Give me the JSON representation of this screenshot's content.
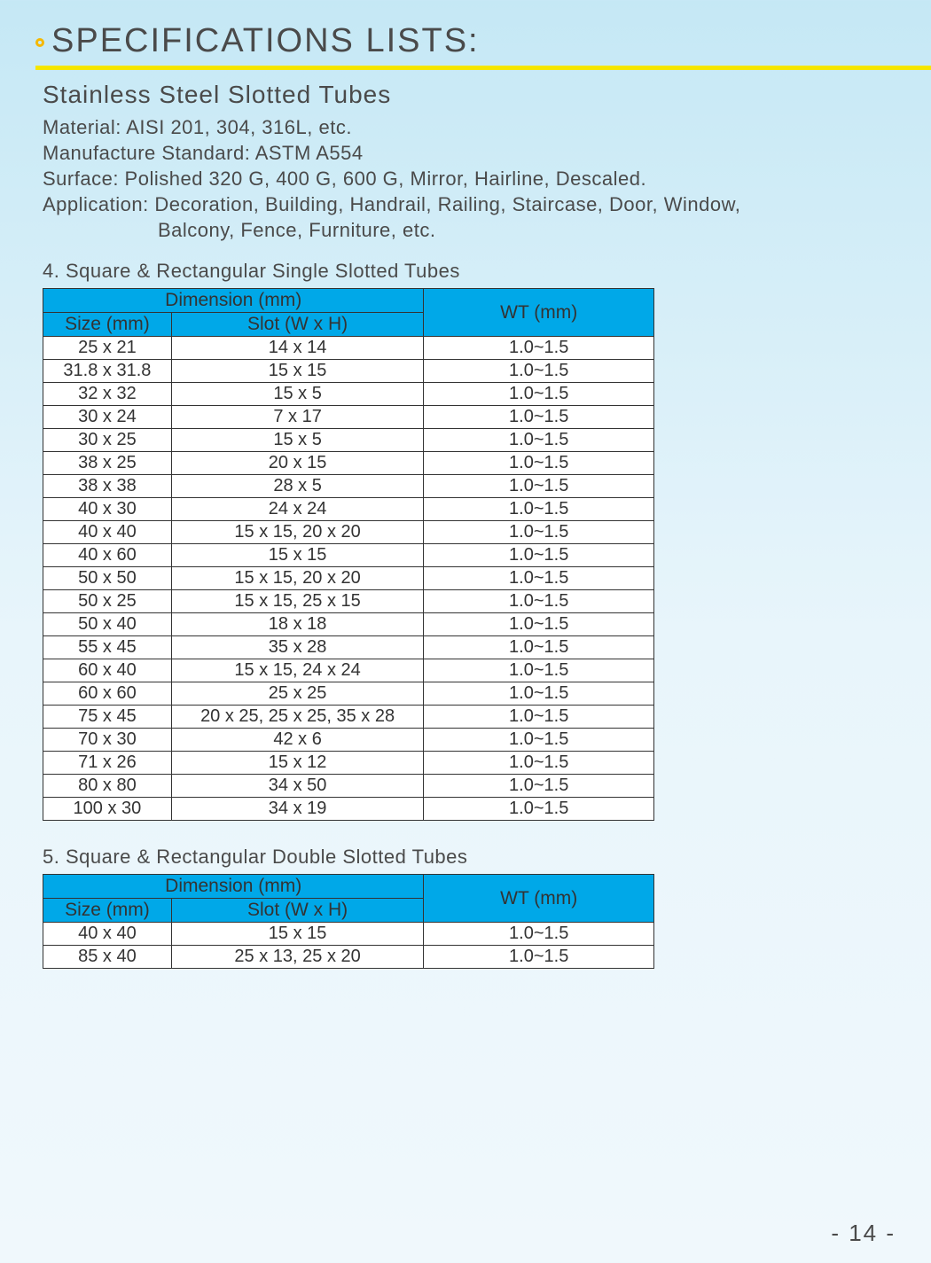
{
  "title": "SPECIFICATIONS LISTS:",
  "subtitle": "Stainless Steel Slotted Tubes",
  "specs": {
    "material": "Material: AISI 201, 304, 316L, etc.",
    "standard": "Manufacture Standard: ASTM A554",
    "surface": "Surface: Polished 320 G, 400 G, 600 G, Mirror, Hairline, Descaled.",
    "application1": "Application: Decoration, Building, Handrail, Railing, Staircase, Door, Window,",
    "application2": "Balcony, Fence, Furniture, etc."
  },
  "table1": {
    "heading": "4. Square & Rectangular Single Slotted Tubes",
    "headers": {
      "dimension": "Dimension (mm)",
      "size": "Size (mm)",
      "slot": "Slot (W x H)",
      "wt": "WT (mm)"
    },
    "rows": [
      {
        "size": "25 x 21",
        "slot": "14 x 14",
        "wt": "1.0~1.5"
      },
      {
        "size": "31.8 x 31.8",
        "slot": "15 x 15",
        "wt": "1.0~1.5"
      },
      {
        "size": "32 x 32",
        "slot": "15 x 5",
        "wt": "1.0~1.5"
      },
      {
        "size": "30 x 24",
        "slot": "7 x 17",
        "wt": "1.0~1.5"
      },
      {
        "size": "30 x 25",
        "slot": "15 x 5",
        "wt": "1.0~1.5"
      },
      {
        "size": "38 x 25",
        "slot": "20 x 15",
        "wt": "1.0~1.5"
      },
      {
        "size": "38 x 38",
        "slot": "28 x 5",
        "wt": "1.0~1.5"
      },
      {
        "size": "40 x 30",
        "slot": "24 x 24",
        "wt": "1.0~1.5"
      },
      {
        "size": "40 x 40",
        "slot": "15 x 15, 20 x 20",
        "wt": "1.0~1.5"
      },
      {
        "size": "40 x 60",
        "slot": "15 x 15",
        "wt": "1.0~1.5"
      },
      {
        "size": "50 x 50",
        "slot": "15 x 15, 20 x 20",
        "wt": "1.0~1.5"
      },
      {
        "size": "50 x 25",
        "slot": "15 x 15, 25 x 15",
        "wt": "1.0~1.5"
      },
      {
        "size": "50 x 40",
        "slot": "18 x 18",
        "wt": "1.0~1.5"
      },
      {
        "size": "55 x 45",
        "slot": "35 x 28",
        "wt": "1.0~1.5"
      },
      {
        "size": "60 x 40",
        "slot": "15 x 15, 24 x 24",
        "wt": "1.0~1.5"
      },
      {
        "size": "60 x 60",
        "slot": "25 x 25",
        "wt": "1.0~1.5"
      },
      {
        "size": "75 x 45",
        "slot": "20 x 25, 25 x 25, 35 x 28",
        "wt": "1.0~1.5"
      },
      {
        "size": "70 x 30",
        "slot": "42 x 6",
        "wt": "1.0~1.5"
      },
      {
        "size": "71 x 26",
        "slot": "15 x 12",
        "wt": "1.0~1.5"
      },
      {
        "size": "80 x 80",
        "slot": "34 x 50",
        "wt": "1.0~1.5"
      },
      {
        "size": "100 x 30",
        "slot": "34 x 19",
        "wt": "1.0~1.5"
      }
    ]
  },
  "table2": {
    "heading": "5. Square & Rectangular Double Slotted Tubes",
    "headers": {
      "dimension": "Dimension (mm)",
      "size": "Size (mm)",
      "slot": "Slot (W x H)",
      "wt": "WT (mm)"
    },
    "rows": [
      {
        "size": "40 x 40",
        "slot": "15 x 15",
        "wt": "1.0~1.5"
      },
      {
        "size": "85 x 40",
        "slot": "25 x 13, 25 x 20",
        "wt": "1.0~1.5"
      }
    ]
  },
  "pageNum": "- 14 -"
}
